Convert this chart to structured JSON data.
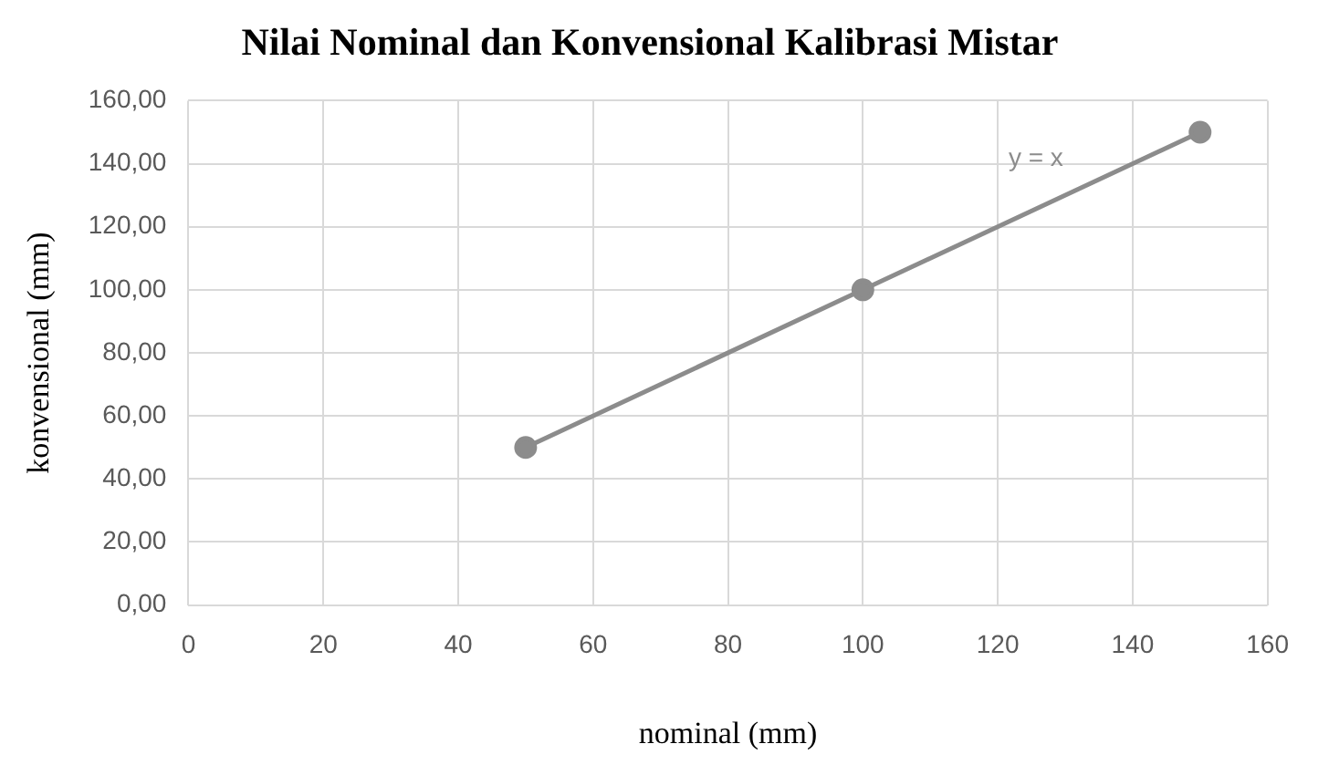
{
  "chart_data": {
    "type": "line",
    "title": "Nilai Nominal dan Konvensional Kalibrasi Mistar",
    "xlabel": "nominal (mm)",
    "ylabel": "konvensional (mm)",
    "x": [
      50,
      100,
      150
    ],
    "series": [
      {
        "color": "#8c8c8c",
        "values": [
          50,
          100,
          150
        ]
      }
    ],
    "xlim": [
      0,
      160
    ],
    "xticks": [
      0,
      20,
      40,
      60,
      80,
      100,
      120,
      140,
      160
    ],
    "ylim": [
      0,
      160
    ],
    "yticks": [
      {
        "value": 0,
        "label": "0,00"
      },
      {
        "value": 20,
        "label": "20,00"
      },
      {
        "value": 40,
        "label": "40,00"
      },
      {
        "value": 60,
        "label": "60,00"
      },
      {
        "value": 80,
        "label": "80,00"
      },
      {
        "value": 100,
        "label": "100,00"
      },
      {
        "value": 120,
        "label": "120,00"
      },
      {
        "value": 140,
        "label": "140,00"
      },
      {
        "value": 160,
        "label": "160,00"
      }
    ],
    "annotations": [
      "y = x"
    ],
    "grid": true,
    "legend": false,
    "marker": "circle",
    "line_style": "solid"
  }
}
